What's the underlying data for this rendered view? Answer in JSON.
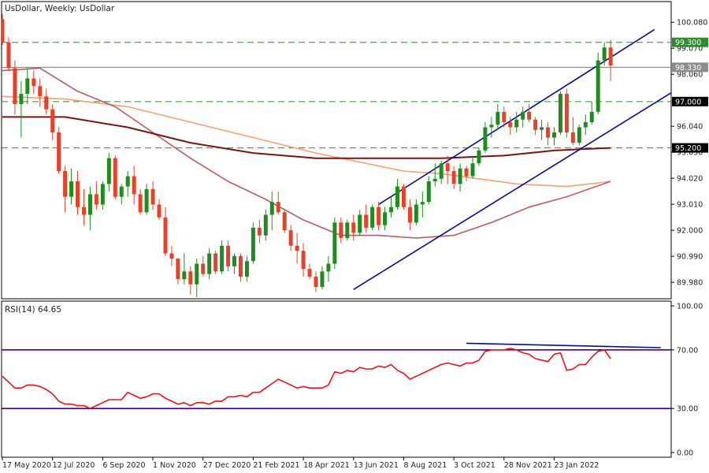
{
  "chart_data": {
    "type": "candlestick",
    "title": "UsDollar, Weekly:  UsDollar",
    "instrument": "UsDollar",
    "timeframe": "Weekly",
    "ylim": [
      89.4,
      100.7
    ],
    "y_ticks": [
      "100.080",
      "99.070",
      "98.060",
      "96.040",
      "95.030",
      "94.020",
      "93.010",
      "92.000",
      "90.990",
      "89.980"
    ],
    "y_tick_values": [
      100.08,
      99.07,
      98.06,
      96.04,
      95.03,
      94.02,
      93.01,
      92.0,
      90.99,
      89.98
    ],
    "x_ticks": [
      "17 May 2020",
      "12 Jul 2020",
      "6 Sep 2020",
      "1 Nov 2020",
      "27 Dec 2020",
      "21 Feb 2021",
      "18 Apr 2021",
      "13 Jun 2021",
      "8 Aug 2021",
      "3 Oct 2021",
      "28 Nov 2021",
      "23 Jan 2022"
    ],
    "x_tick_index": [
      0,
      8,
      16,
      24,
      32,
      40,
      48,
      56,
      64,
      72,
      80,
      88
    ],
    "price_levels": [
      {
        "label": "99.300",
        "value": 99.3,
        "style": "dashed",
        "badge": "green"
      },
      {
        "label": "98.330",
        "value": 98.33,
        "style": "solid",
        "badge": "gray"
      },
      {
        "label": "97.000",
        "value": 97.0,
        "style": "dashed",
        "badge": "black"
      },
      {
        "label": "95.200",
        "value": 95.2,
        "style": "dashed",
        "badge": "black"
      }
    ],
    "colors": {
      "bull": "#1e8c1e",
      "bear": "#e8412a",
      "channel": "#0a0a8c",
      "ma_fast": "#b45f5f",
      "ma_mid": "#f0a27a",
      "ma_slow": "#7a1414",
      "rsi": "#e0141e",
      "rsi_level": "#4b0082",
      "rsi_trend": "#0a0a8c"
    },
    "candles": [
      [
        100.2,
        100.4,
        99.2,
        99.3
      ],
      [
        99.3,
        99.5,
        98.2,
        98.3
      ],
      [
        98.3,
        98.6,
        96.5,
        96.9
      ],
      [
        96.9,
        97.8,
        95.6,
        97.3
      ],
      [
        97.3,
        98.3,
        96.9,
        97.9
      ],
      [
        97.9,
        98.2,
        97.3,
        97.6
      ],
      [
        97.6,
        97.9,
        96.8,
        97.2
      ],
      [
        97.2,
        97.5,
        96.5,
        96.7
      ],
      [
        96.7,
        96.9,
        95.5,
        95.8
      ],
      [
        95.8,
        96.0,
        94.2,
        94.3
      ],
      [
        94.3,
        94.5,
        92.7,
        93.3
      ],
      [
        93.3,
        94.4,
        93.0,
        93.9
      ],
      [
        93.9,
        94.3,
        92.6,
        92.9
      ],
      [
        92.9,
        93.6,
        92.2,
        92.6
      ],
      [
        92.6,
        93.7,
        92.0,
        93.4
      ],
      [
        93.4,
        93.9,
        92.8,
        93.0
      ],
      [
        93.0,
        93.9,
        92.8,
        93.8
      ],
      [
        93.8,
        95.0,
        93.5,
        94.8
      ],
      [
        94.8,
        94.9,
        93.2,
        93.3
      ],
      [
        93.3,
        93.8,
        93.0,
        93.7
      ],
      [
        93.7,
        94.3,
        93.3,
        94.1
      ],
      [
        94.1,
        94.5,
        93.0,
        93.4
      ],
      [
        93.4,
        93.6,
        92.6,
        92.7
      ],
      [
        92.7,
        93.8,
        92.6,
        93.6
      ],
      [
        93.6,
        93.9,
        92.8,
        93.0
      ],
      [
        93.0,
        93.2,
        92.4,
        92.5
      ],
      [
        92.5,
        92.9,
        91.0,
        91.1
      ],
      [
        91.1,
        91.4,
        90.6,
        90.9
      ],
      [
        90.9,
        90.9,
        89.9,
        90.1
      ],
      [
        90.1,
        91.1,
        89.9,
        90.4
      ],
      [
        90.4,
        90.6,
        89.5,
        89.9
      ],
      [
        89.9,
        90.9,
        89.4,
        90.7
      ],
      [
        90.7,
        91.0,
        90.2,
        90.3
      ],
      [
        90.3,
        91.3,
        90.1,
        91.1
      ],
      [
        91.1,
        91.2,
        90.3,
        90.4
      ],
      [
        90.4,
        91.6,
        90.3,
        91.4
      ],
      [
        91.4,
        91.6,
        90.4,
        90.6
      ],
      [
        90.6,
        91.1,
        90.3,
        91.0
      ],
      [
        91.0,
        91.1,
        90.0,
        90.2
      ],
      [
        90.2,
        91.0,
        90.0,
        90.8
      ],
      [
        90.8,
        92.3,
        90.7,
        92.1
      ],
      [
        92.1,
        92.4,
        91.5,
        91.8
      ],
      [
        91.8,
        92.8,
        91.6,
        92.6
      ],
      [
        92.6,
        93.5,
        92.0,
        93.1
      ],
      [
        93.1,
        93.5,
        92.6,
        92.7
      ],
      [
        92.7,
        92.8,
        91.9,
        92.0
      ],
      [
        92.0,
        92.2,
        91.2,
        91.4
      ],
      [
        91.4,
        91.9,
        90.7,
        91.2
      ],
      [
        91.2,
        91.5,
        90.2,
        90.5
      ],
      [
        90.5,
        90.7,
        90.1,
        90.2
      ],
      [
        90.2,
        90.4,
        89.6,
        89.8
      ],
      [
        89.8,
        90.6,
        89.7,
        90.4
      ],
      [
        90.4,
        91.0,
        90.0,
        90.7
      ],
      [
        90.7,
        92.5,
        90.5,
        92.3
      ],
      [
        92.3,
        92.5,
        91.5,
        91.7
      ],
      [
        91.7,
        92.4,
        91.6,
        92.3
      ],
      [
        92.3,
        92.6,
        91.6,
        91.9
      ],
      [
        91.9,
        92.8,
        91.8,
        92.6
      ],
      [
        92.6,
        93.0,
        91.9,
        92.1
      ],
      [
        92.1,
        93.0,
        92.0,
        92.9
      ],
      [
        92.9,
        93.1,
        92.0,
        92.2
      ],
      [
        92.2,
        92.9,
        92.0,
        92.7
      ],
      [
        92.7,
        93.3,
        92.5,
        92.9
      ],
      [
        92.9,
        94.0,
        92.8,
        93.7
      ],
      [
        93.7,
        93.8,
        92.8,
        92.9
      ],
      [
        92.9,
        93.2,
        92.0,
        92.3
      ],
      [
        92.3,
        93.2,
        92.2,
        93.0
      ],
      [
        93.0,
        93.5,
        92.5,
        93.1
      ],
      [
        93.1,
        94.1,
        93.0,
        93.9
      ],
      [
        93.9,
        94.6,
        93.7,
        94.0
      ],
      [
        94.0,
        94.7,
        93.8,
        94.6
      ],
      [
        94.6,
        94.9,
        93.8,
        94.3
      ],
      [
        94.3,
        94.5,
        93.6,
        93.8
      ],
      [
        93.8,
        94.6,
        93.5,
        94.4
      ],
      [
        94.4,
        94.5,
        93.9,
        94.1
      ],
      [
        94.1,
        94.9,
        94.0,
        94.6
      ],
      [
        94.6,
        95.2,
        94.5,
        95.1
      ],
      [
        95.1,
        96.2,
        95.0,
        96.0
      ],
      [
        96.0,
        96.4,
        95.6,
        96.1
      ],
      [
        96.1,
        96.9,
        95.9,
        96.6
      ],
      [
        96.6,
        96.8,
        96.0,
        96.2
      ],
      [
        96.2,
        96.4,
        95.7,
        96.0
      ],
      [
        96.0,
        96.6,
        95.8,
        96.3
      ],
      [
        96.3,
        96.8,
        96.0,
        96.6
      ],
      [
        96.6,
        96.9,
        96.2,
        96.3
      ],
      [
        96.3,
        96.4,
        95.7,
        95.9
      ],
      [
        95.9,
        96.3,
        95.5,
        96.0
      ],
      [
        96.0,
        96.2,
        95.3,
        95.6
      ],
      [
        95.6,
        96.0,
        95.3,
        95.8
      ],
      [
        95.8,
        97.4,
        95.7,
        97.3
      ],
      [
        97.3,
        97.5,
        95.6,
        95.8
      ],
      [
        95.8,
        96.4,
        95.3,
        95.4
      ],
      [
        95.4,
        96.1,
        95.3,
        96.0
      ],
      [
        96.0,
        96.5,
        95.7,
        96.2
      ],
      [
        96.2,
        97.0,
        96.1,
        96.6
      ],
      [
        96.6,
        98.9,
        96.5,
        98.6
      ],
      [
        98.6,
        99.3,
        98.4,
        99.1
      ],
      [
        99.1,
        99.4,
        97.8,
        98.4
      ]
    ],
    "ma_fast": [
      [
        0,
        98.2
      ],
      [
        6,
        98.3
      ],
      [
        12,
        97.4
      ],
      [
        18,
        96.8
      ],
      [
        24,
        95.8
      ],
      [
        30,
        94.8
      ],
      [
        36,
        93.9
      ],
      [
        42,
        93.2
      ],
      [
        48,
        92.4
      ],
      [
        54,
        91.8
      ],
      [
        60,
        91.8
      ],
      [
        66,
        91.7
      ],
      [
        72,
        91.8
      ],
      [
        78,
        92.3
      ],
      [
        84,
        92.9
      ],
      [
        90,
        93.3
      ],
      [
        97,
        93.9
      ]
    ],
    "ma_mid": [
      [
        0,
        97.2
      ],
      [
        10,
        97.1
      ],
      [
        20,
        96.8
      ],
      [
        30,
        96.2
      ],
      [
        40,
        95.6
      ],
      [
        50,
        95.0
      ],
      [
        58,
        94.6
      ],
      [
        64,
        94.3
      ],
      [
        70,
        94.2
      ],
      [
        76,
        94.0
      ],
      [
        82,
        93.8
      ],
      [
        90,
        93.7
      ],
      [
        97,
        93.9
      ]
    ],
    "ma_slow": [
      [
        0,
        96.4
      ],
      [
        10,
        96.4
      ],
      [
        20,
        96.0
      ],
      [
        30,
        95.4
      ],
      [
        40,
        95.0
      ],
      [
        50,
        94.8
      ],
      [
        60,
        94.8
      ],
      [
        70,
        94.8
      ],
      [
        80,
        94.9
      ],
      [
        88,
        95.1
      ],
      [
        97,
        95.2
      ]
    ],
    "channel_upper": [
      [
        60,
        93.0
      ],
      [
        104,
        99.8
      ]
    ],
    "channel_lower": [
      [
        56,
        89.7
      ],
      [
        115,
        98.6
      ]
    ],
    "rsi_panel": {
      "label": "RSI(14) 64.65",
      "period": 14,
      "current": 64.65,
      "ylim": [
        0,
        100
      ],
      "y_ticks": [
        "100.00",
        "70.00",
        "30.00",
        "0.00"
      ],
      "y_tick_values": [
        100,
        70,
        30,
        0
      ],
      "levels": [
        70,
        30
      ],
      "values": [
        52,
        48,
        44,
        44,
        46,
        46,
        45,
        43,
        40,
        35,
        33,
        33,
        32,
        32,
        30,
        32,
        34,
        36,
        36,
        36,
        41,
        39,
        37,
        38,
        40,
        40,
        37,
        35,
        33,
        34,
        32,
        34,
        34,
        33,
        35,
        35,
        38,
        38,
        39,
        38,
        41,
        41,
        44,
        47,
        50,
        48,
        46,
        44,
        45,
        44,
        44,
        44,
        46,
        55,
        54,
        56,
        55,
        58,
        57,
        57,
        59,
        58,
        60,
        56,
        54,
        50,
        52,
        54,
        56,
        58,
        60,
        61,
        60,
        59,
        61,
        61,
        63,
        69,
        70,
        70,
        70,
        71,
        70,
        68,
        67,
        64,
        63,
        62,
        67,
        68,
        56,
        57,
        60,
        60,
        65,
        69,
        70,
        64
      ],
      "trendline": [
        [
          74,
          74.5
        ],
        [
          105,
          71.5
        ]
      ]
    }
  }
}
